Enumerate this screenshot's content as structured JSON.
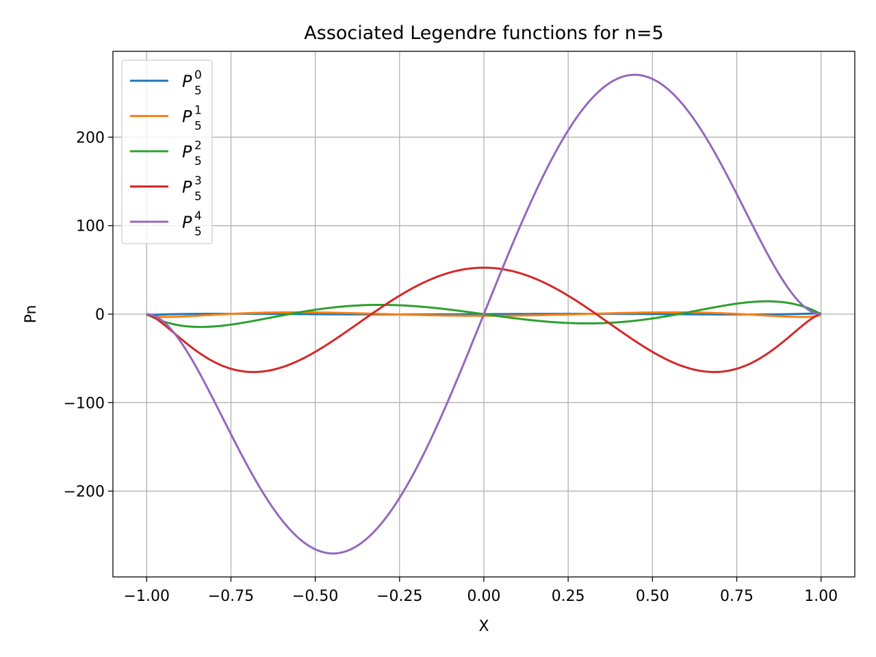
{
  "chart_data": {
    "type": "line",
    "title": "Associated Legendre functions for n=5",
    "xlabel": "X",
    "ylabel": "Pn",
    "xlim": [
      -1.1,
      1.1
    ],
    "ylim": [
      -297,
      297
    ],
    "xticks": [
      -1.0,
      -0.75,
      -0.5,
      -0.25,
      0.0,
      0.25,
      0.5,
      0.75,
      1.0
    ],
    "xtick_labels": [
      "−1.00",
      "−0.75",
      "−0.50",
      "−0.25",
      "0.00",
      "0.25",
      "0.50",
      "0.75",
      "1.00"
    ],
    "yticks": [
      -200,
      -100,
      0,
      100,
      200
    ],
    "ytick_labels": [
      "−200",
      "−100",
      "0",
      "100",
      "200"
    ],
    "grid": true,
    "legend_position": "top-left",
    "series": [
      {
        "name": "P",
        "sup": "0",
        "sub": "5",
        "m": 0,
        "color": "#1f77b4",
        "x": [
          -1.0,
          -0.75,
          -0.5,
          -0.25,
          0.0,
          0.25,
          0.5,
          0.75,
          1.0
        ],
        "values": [
          -1.0,
          0.41,
          -0.09,
          -0.34,
          0.0,
          0.34,
          0.09,
          -0.41,
          1.0
        ]
      },
      {
        "name": "P",
        "sup": "1",
        "sub": "5",
        "m": 1,
        "color": "#ff7f0e",
        "x": [
          -1.0,
          -0.75,
          -0.5,
          -0.25,
          0.0,
          0.25,
          0.5,
          0.75,
          1.0
        ],
        "values": [
          0.0,
          -0.24,
          1.73,
          0.76,
          -1.88,
          0.76,
          1.73,
          -0.24,
          0.0
        ]
      },
      {
        "name": "P",
        "sup": "2",
        "sub": "5",
        "m": 2,
        "color": "#2ca02c",
        "x": [
          -1.0,
          -0.84,
          -0.75,
          -0.5,
          -0.31,
          0.0,
          0.31,
          0.5,
          0.75,
          0.84,
          1.0
        ],
        "values": [
          0.0,
          -14.0,
          -11.8,
          5.6,
          10.3,
          0.0,
          -10.3,
          -5.6,
          11.8,
          14.0,
          0.0
        ]
      },
      {
        "name": "P",
        "sup": "3",
        "sub": "5",
        "m": 3,
        "color": "#d62728",
        "x": [
          -1.0,
          -0.75,
          -0.68,
          -0.5,
          -0.25,
          0.0,
          0.25,
          0.5,
          0.68,
          0.75,
          1.0
        ],
        "values": [
          0.0,
          -63.8,
          -65.5,
          -42.6,
          19.1,
          52.5,
          19.1,
          -42.6,
          -65.5,
          -63.8,
          0.0
        ]
      },
      {
        "name": "P",
        "sup": "4",
        "sub": "5",
        "m": 4,
        "color": "#9467bd",
        "x": [
          -1.0,
          -0.75,
          -0.45,
          -0.25,
          0.0,
          0.25,
          0.45,
          0.75,
          1.0
        ],
        "values": [
          0.0,
          -143.3,
          -270.0,
          -207.7,
          0.0,
          207.7,
          270.0,
          143.3,
          0.0
        ]
      }
    ]
  }
}
